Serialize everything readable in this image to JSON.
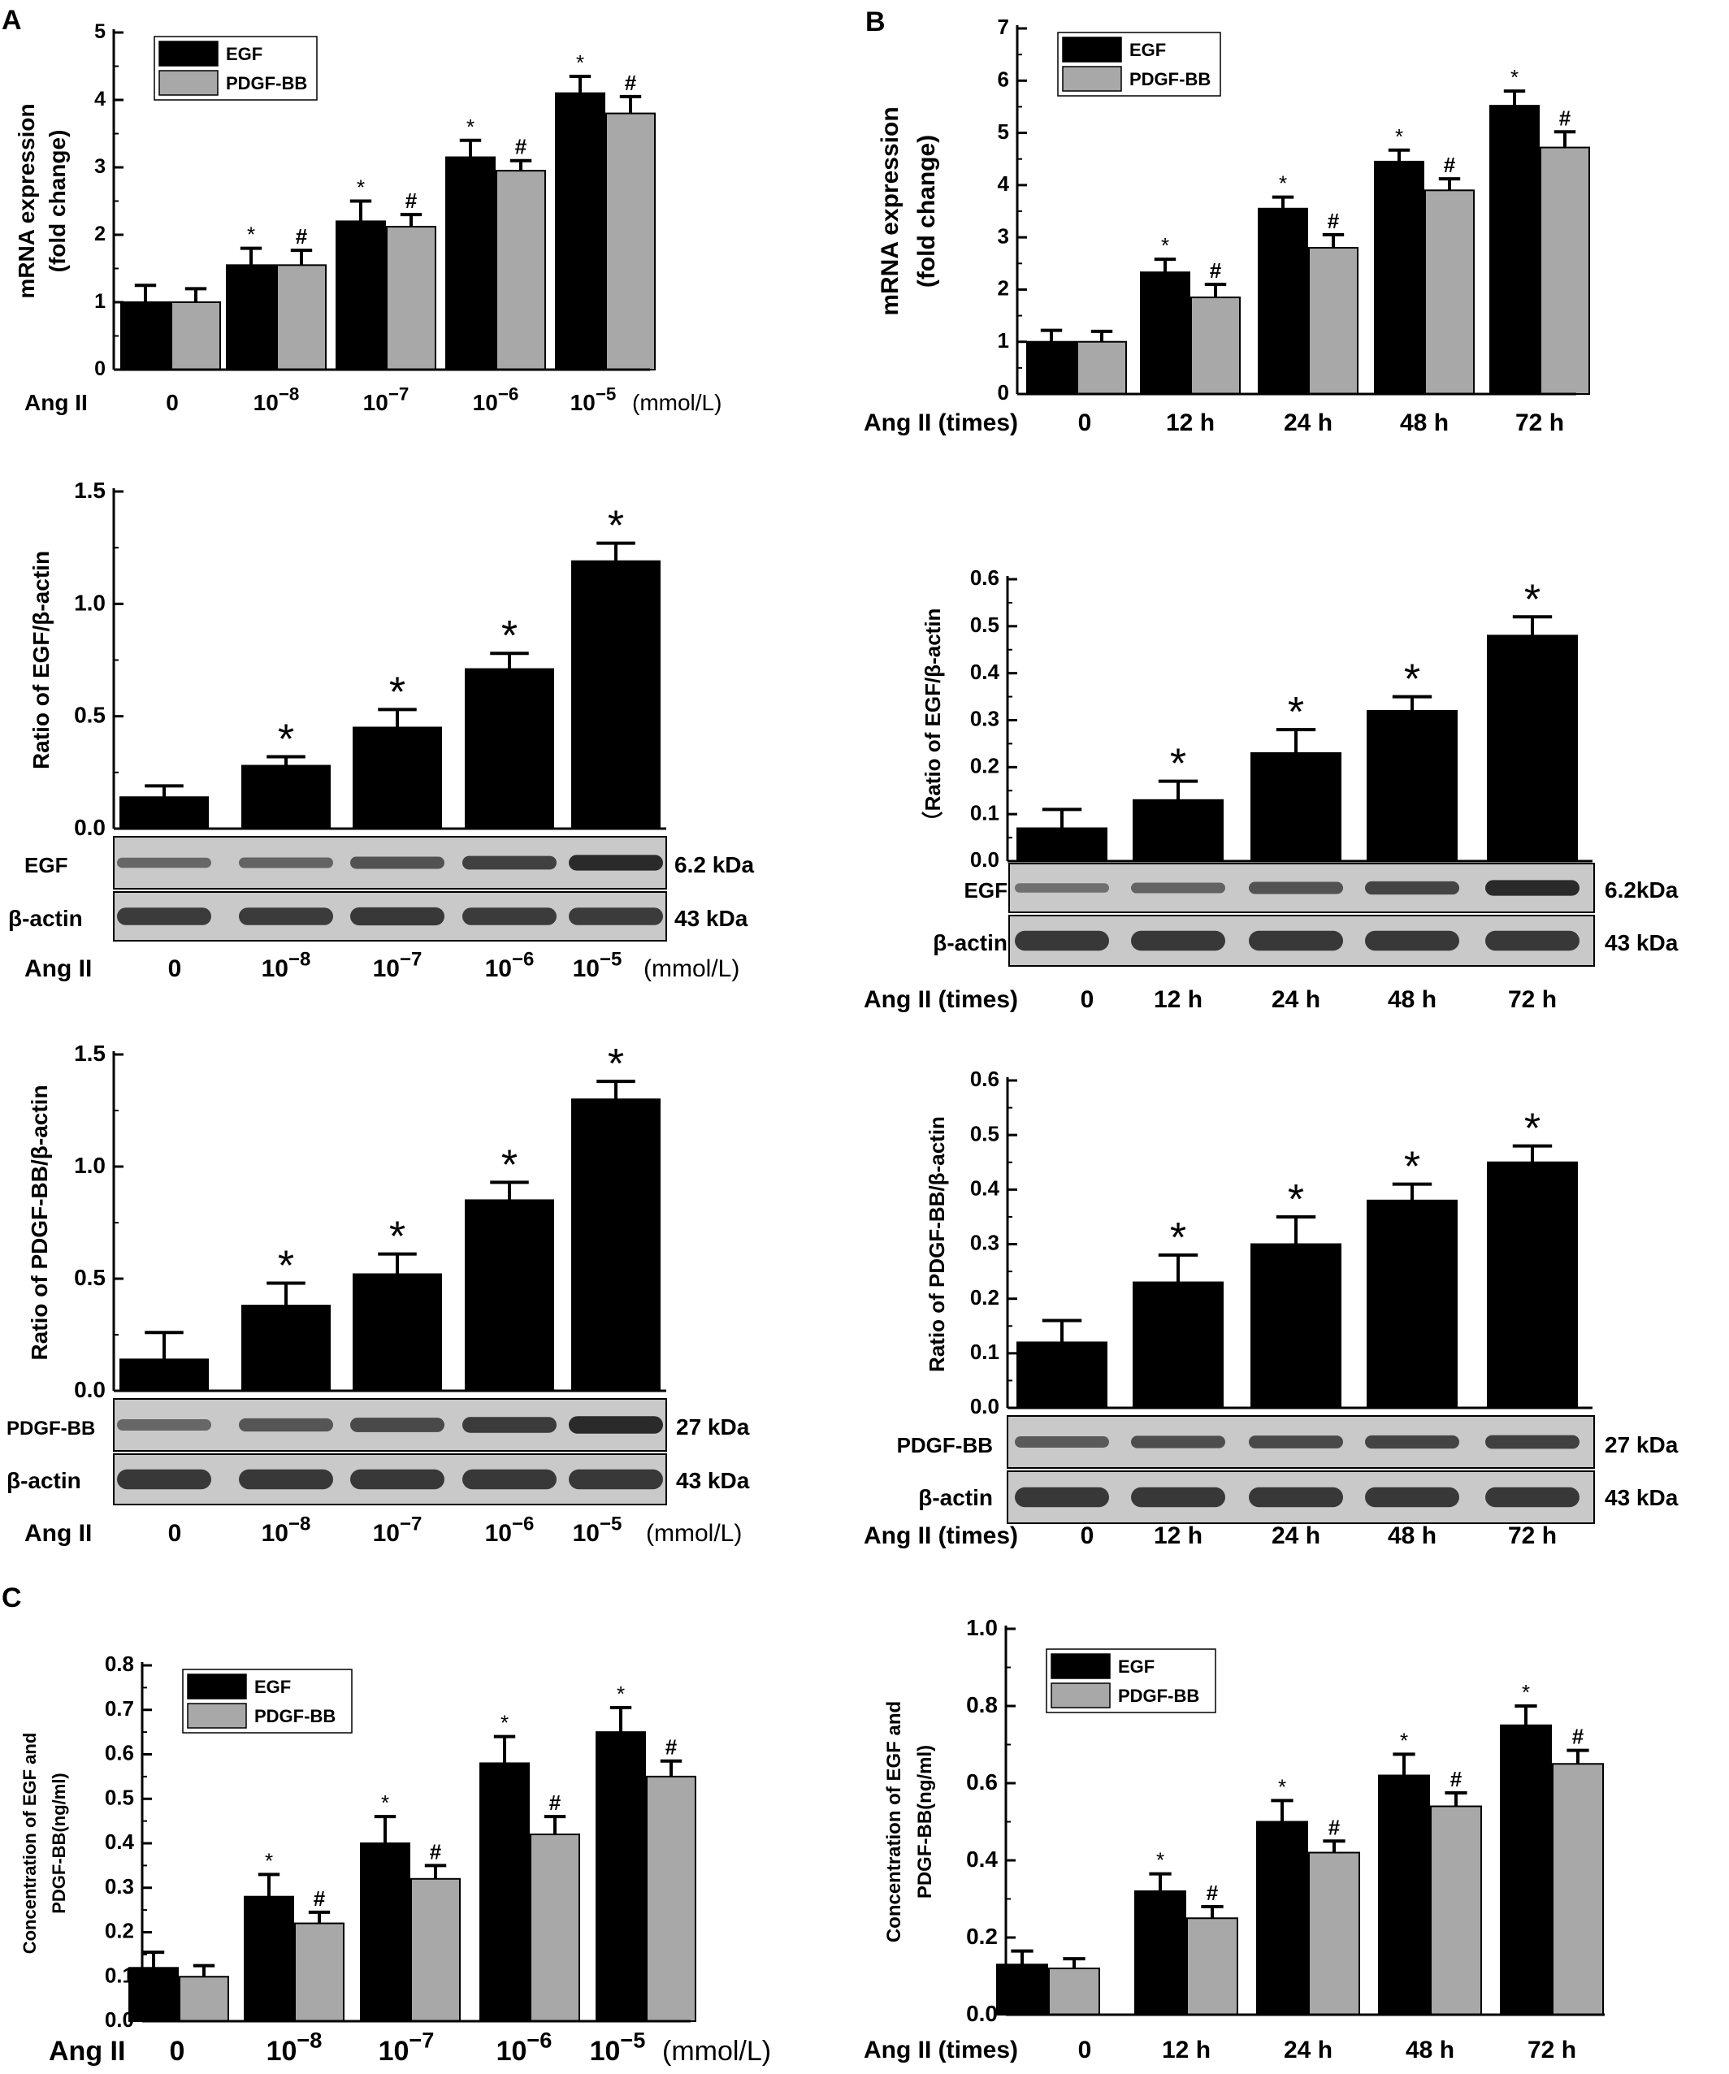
{
  "colors": {
    "egf": "#000000",
    "pdgf": "#a8a8a8",
    "blot_bg": "#c9c9c9",
    "band": "#2a2a2a"
  },
  "panel_labels": [
    "A",
    "B",
    "C"
  ],
  "common": {
    "ang": "Ang II",
    "ang_times": "Ang II (times)",
    "unit": "(mmol/L)",
    "conc_base": "10",
    "conc_exp": [
      "−8",
      "−7",
      "−6",
      "−5"
    ],
    "time_cats": [
      "0",
      "12 h",
      "24 h",
      "48 h",
      "72 h"
    ],
    "zero": "0",
    "blot": {
      "egf_label": "EGF",
      "pdgf_label": "PDGF-BB",
      "actin_label": "β-actin",
      "egf_kda_a": "6.2 kDa",
      "egf_kda_b": "6.2kDa",
      "pdgf_kda": "27 kDa",
      "actin_kda": "43 kDa"
    }
  },
  "chart_data": [
    {
      "id": "A1",
      "type": "bar",
      "ylabel": [
        "mRNA expression",
        "(fold change)"
      ],
      "ylim": [
        0,
        5
      ],
      "yticks": [
        "0",
        "1",
        "2",
        "3",
        "4",
        "5"
      ],
      "x_axis": "conc",
      "legend": {
        "placement": "top-left"
      },
      "series": [
        {
          "name": "EGF",
          "values": [
            1.0,
            1.55,
            2.2,
            3.15,
            4.1
          ],
          "errors": [
            0.25,
            0.25,
            0.3,
            0.25,
            0.25
          ],
          "marks": [
            "",
            "*",
            "*",
            "*",
            "*"
          ]
        },
        {
          "name": "PDGF-BB",
          "values": [
            1.0,
            1.55,
            2.12,
            2.95,
            3.8
          ],
          "errors": [
            0.2,
            0.22,
            0.18,
            0.15,
            0.25
          ],
          "marks": [
            "",
            "#",
            "#",
            "#",
            "#"
          ]
        }
      ]
    },
    {
      "id": "B1",
      "type": "bar",
      "ylabel": [
        "mRNA expression",
        "(fold change)"
      ],
      "ylim": [
        0,
        7
      ],
      "yticks": [
        "0",
        "1",
        "2",
        "3",
        "4",
        "5",
        "6",
        "7"
      ],
      "x_axis": "time",
      "legend": {
        "placement": "top-left"
      },
      "series": [
        {
          "name": "EGF",
          "values": [
            1.0,
            2.33,
            3.55,
            4.45,
            5.52
          ],
          "errors": [
            0.22,
            0.25,
            0.22,
            0.22,
            0.28
          ],
          "marks": [
            "",
            "*",
            "*",
            "*",
            "*"
          ]
        },
        {
          "name": "PDGF-BB",
          "values": [
            1.0,
            1.85,
            2.8,
            3.9,
            4.72
          ],
          "errors": [
            0.2,
            0.25,
            0.25,
            0.22,
            0.3
          ],
          "marks": [
            "",
            "#",
            "#",
            "#",
            "#"
          ]
        }
      ]
    },
    {
      "id": "A2",
      "type": "bar",
      "ylabel": [
        "Ratio of EGF/β-actin"
      ],
      "ylim": [
        0,
        1.5
      ],
      "yticks": [
        "0.0",
        "0.5",
        "1.0",
        "1.5"
      ],
      "x_axis": "conc",
      "series": [
        {
          "values": [
            0.14,
            0.28,
            0.45,
            0.71,
            1.19
          ],
          "errors": [
            0.05,
            0.04,
            0.08,
            0.07,
            0.08
          ],
          "marks": [
            "",
            "*",
            "*",
            "*",
            "*"
          ]
        }
      ]
    },
    {
      "id": "B2",
      "type": "bar",
      "ylabel": [
        "（Ratio of EGF/β-actin"
      ],
      "ylim": [
        0,
        0.6
      ],
      "yticks": [
        "0.0",
        "0.1",
        "0.2",
        "0.3",
        "0.4",
        "0.5",
        "0.6"
      ],
      "x_axis": "time",
      "series": [
        {
          "values": [
            0.07,
            0.13,
            0.23,
            0.32,
            0.48
          ],
          "errors": [
            0.04,
            0.04,
            0.05,
            0.03,
            0.04
          ],
          "marks": [
            "",
            "*",
            "*",
            "*",
            "*"
          ]
        }
      ]
    },
    {
      "id": "A3",
      "type": "bar",
      "ylabel": [
        "Ratio of PDGF-BB/β-actin"
      ],
      "ylim": [
        0,
        1.5
      ],
      "yticks": [
        "0.0",
        "0.5",
        "1.0",
        "1.5"
      ],
      "x_axis": "conc",
      "series": [
        {
          "values": [
            0.14,
            0.38,
            0.52,
            0.85,
            1.3
          ],
          "errors": [
            0.12,
            0.1,
            0.09,
            0.08,
            0.08
          ],
          "marks": [
            "",
            "*",
            "*",
            "*",
            "*"
          ]
        }
      ]
    },
    {
      "id": "B3",
      "type": "bar",
      "ylabel": [
        "Ratio of PDGF-BB/β-actin"
      ],
      "ylim": [
        0,
        0.6
      ],
      "yticks": [
        "0.0",
        "0.1",
        "0.2",
        "0.3",
        "0.4",
        "0.5",
        "0.6"
      ],
      "x_axis": "time",
      "series": [
        {
          "values": [
            0.12,
            0.23,
            0.3,
            0.38,
            0.45
          ],
          "errors": [
            0.04,
            0.05,
            0.05,
            0.03,
            0.03
          ],
          "marks": [
            "",
            "*",
            "*",
            "*",
            "*"
          ]
        }
      ]
    },
    {
      "id": "C1",
      "type": "bar",
      "ylabel": [
        "Concentration of EGF and",
        "PDGF-BB(ng/ml)"
      ],
      "ylim": [
        0,
        0.8
      ],
      "yticks": [
        "0.0",
        "0.1",
        "0.2",
        "0.3",
        "0.4",
        "0.5",
        "0.6",
        "0.7",
        "0.8"
      ],
      "x_axis": "conc",
      "legend": {
        "placement": "top-left"
      },
      "series": [
        {
          "name": "EGF",
          "values": [
            0.12,
            0.28,
            0.4,
            0.58,
            0.65
          ],
          "errors": [
            0.035,
            0.05,
            0.06,
            0.06,
            0.055
          ],
          "marks": [
            "",
            "*",
            "*",
            "*",
            "*"
          ]
        },
        {
          "name": "PDGF-BB",
          "values": [
            0.1,
            0.22,
            0.32,
            0.42,
            0.55
          ],
          "errors": [
            0.025,
            0.025,
            0.03,
            0.04,
            0.035
          ],
          "marks": [
            "",
            "#",
            "#",
            "#",
            "#"
          ]
        }
      ]
    },
    {
      "id": "C2",
      "type": "bar",
      "ylabel": [
        "Concentration of EGF and",
        "PDGF-BB(ng/ml)"
      ],
      "ylim": [
        0,
        1.0
      ],
      "yticks": [
        "0.0",
        "0.2",
        "0.4",
        "0.6",
        "0.8",
        "1.0"
      ],
      "x_axis": "time",
      "legend": {
        "placement": "top-left"
      },
      "series": [
        {
          "name": "EGF",
          "values": [
            0.13,
            0.32,
            0.5,
            0.62,
            0.75
          ],
          "errors": [
            0.035,
            0.045,
            0.055,
            0.055,
            0.05
          ],
          "marks": [
            "",
            "*",
            "*",
            "*",
            "*"
          ]
        },
        {
          "name": "PDGF-BB",
          "values": [
            0.12,
            0.25,
            0.42,
            0.54,
            0.65
          ],
          "errors": [
            0.025,
            0.03,
            0.03,
            0.035,
            0.035
          ],
          "marks": [
            "",
            "#",
            "#",
            "#",
            "#"
          ]
        }
      ]
    }
  ]
}
